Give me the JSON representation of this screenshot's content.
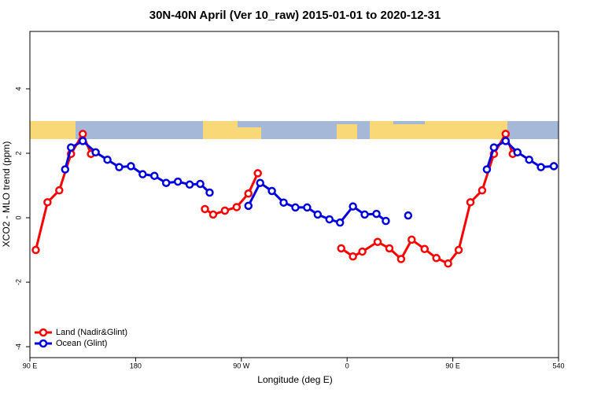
{
  "chart_data": {
    "type": "line",
    "title": "30N-40N April (Ver 10_raw)   2015-01-01 to 2020-12-31",
    "xlabel": "Longitude (deg E)",
    "ylabel": "XCO2 - MLO trend (ppm)",
    "xlim": [
      90,
      540
    ],
    "xticks": [
      {
        "value": 90,
        "label": "90 E"
      },
      180,
      {
        "value": 270,
        "label": "90 W"
      },
      {
        "value": 360,
        "label": "0"
      },
      {
        "value": 450,
        "label": "90 E"
      },
      540
    ],
    "ylim": [
      -4.34,
      5.78
    ],
    "yticks": [
      -4,
      -2,
      0,
      2,
      4
    ],
    "legend": "bottom-left",
    "series": [
      {
        "name": "Land (Nadir&Glint)",
        "color": "#ff0000",
        "x": [
          95,
          105,
          115,
          125,
          135,
          142,
          null,
          239,
          246,
          256,
          266,
          276,
          284,
          null,
          355,
          365,
          373,
          386,
          396,
          406,
          415,
          426,
          436,
          446,
          455,
          465,
          475,
          485,
          495,
          501
        ],
        "values": [
          -1.0,
          0.48,
          0.85,
          1.98,
          2.6,
          1.98,
          null,
          0.27,
          0.1,
          0.22,
          0.33,
          0.75,
          1.38,
          null,
          -0.95,
          -1.2,
          -1.05,
          -0.75,
          -0.95,
          -1.28,
          -0.68,
          -0.97,
          -1.25,
          -1.42,
          -1.0,
          0.48,
          0.85,
          1.98,
          2.6,
          1.98
        ]
      },
      {
        "name": "Ocean (Glint)",
        "color": "#0000dd",
        "x": [
          120,
          125,
          135,
          146,
          156,
          166,
          176,
          186,
          196,
          206,
          216,
          226,
          235,
          243,
          null,
          276,
          286,
          296,
          306,
          316,
          326,
          335,
          345,
          354,
          365,
          375,
          385,
          393,
          null,
          412,
          null,
          479,
          485,
          495,
          505,
          515,
          525,
          536
        ],
        "values": [
          1.5,
          2.18,
          2.38,
          2.03,
          1.8,
          1.57,
          1.6,
          1.35,
          1.3,
          1.08,
          1.12,
          1.03,
          1.05,
          0.78,
          null,
          0.37,
          1.08,
          0.83,
          0.47,
          0.32,
          0.32,
          0.1,
          -0.05,
          -0.15,
          0.35,
          0.1,
          0.12,
          -0.1,
          null,
          0.07,
          null,
          1.5,
          2.18,
          2.38,
          2.03,
          1.8,
          1.57,
          1.6
        ]
      }
    ]
  }
}
